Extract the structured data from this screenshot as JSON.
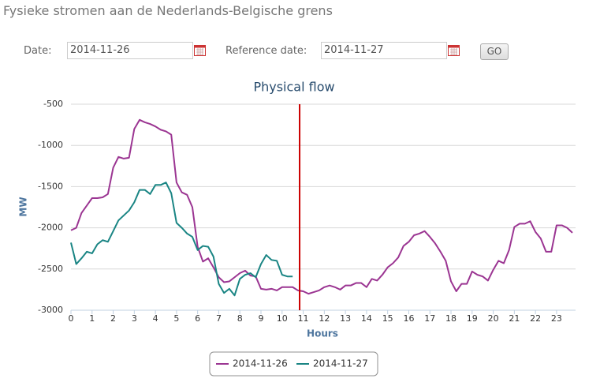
{
  "header": {
    "title": "Fysieke stromen aan de Nederlands-Belgische grens"
  },
  "form": {
    "date_label": "Date:",
    "date_value": "2014-11-26",
    "reference_label": "Reference date:",
    "reference_value": "2014-11-27",
    "button": "GO"
  },
  "chart_data": {
    "type": "line",
    "title": "Physical flow",
    "x_label": "Hours",
    "y_label": "MW",
    "x": [
      0,
      0.25,
      0.5,
      0.75,
      1,
      1.25,
      1.5,
      1.75,
      2,
      2.25,
      2.5,
      2.75,
      3,
      3.25,
      3.5,
      3.75,
      4,
      4.25,
      4.5,
      4.75,
      5,
      5.25,
      5.5,
      5.75,
      6,
      6.25,
      6.5,
      6.75,
      7,
      7.25,
      7.5,
      7.75,
      8,
      8.25,
      8.5,
      8.75,
      9,
      9.25,
      9.5,
      9.75,
      10,
      10.25,
      10.5,
      10.75,
      11,
      11.25,
      11.5,
      11.75,
      12,
      12.25,
      12.5,
      12.75,
      13,
      13.25,
      13.5,
      13.75,
      14,
      14.25,
      14.5,
      14.75,
      15,
      15.25,
      15.5,
      15.75,
      16,
      16.25,
      16.5,
      16.75,
      17,
      17.25,
      17.5,
      17.75,
      18,
      18.25,
      18.5,
      18.75,
      19,
      19.25,
      19.5,
      19.75,
      20,
      20.25,
      20.5,
      20.75,
      21,
      21.25,
      21.5,
      21.75,
      22,
      22.25,
      22.5,
      22.75,
      23,
      23.25,
      23.5,
      23.75
    ],
    "series": [
      {
        "name": "2014-11-26",
        "color": "#9b3592",
        "values": [
          -2030,
          -2000,
          -1820,
          -1730,
          -1640,
          -1640,
          -1630,
          -1590,
          -1270,
          -1140,
          -1160,
          -1150,
          -800,
          -690,
          -720,
          -740,
          -770,
          -810,
          -830,
          -870,
          -1450,
          -1570,
          -1600,
          -1750,
          -2230,
          -2410,
          -2370,
          -2480,
          -2600,
          -2660,
          -2650,
          -2600,
          -2550,
          -2520,
          -2580,
          -2590,
          -2740,
          -2750,
          -2740,
          -2760,
          -2720,
          -2720,
          -2720,
          -2760,
          -2770,
          -2800,
          -2780,
          -2760,
          -2720,
          -2700,
          -2720,
          -2750,
          -2700,
          -2700,
          -2670,
          -2670,
          -2720,
          -2620,
          -2640,
          -2570,
          -2480,
          -2430,
          -2360,
          -2220,
          -2170,
          -2090,
          -2070,
          -2040,
          -2110,
          -2190,
          -2290,
          -2400,
          -2650,
          -2770,
          -2680,
          -2680,
          -2530,
          -2570,
          -2590,
          -2640,
          -2510,
          -2400,
          -2430,
          -2270,
          -1990,
          -1950,
          -1950,
          -1920,
          -2050,
          -2130,
          -2290,
          -2290,
          -1970,
          -1970,
          -2000,
          -2060
        ]
      },
      {
        "name": "2014-11-27",
        "color": "#1a8584",
        "values": [
          -2180,
          -2440,
          -2370,
          -2290,
          -2310,
          -2200,
          -2150,
          -2170,
          -2040,
          -1910,
          -1850,
          -1790,
          -1690,
          -1540,
          -1540,
          -1590,
          -1480,
          -1480,
          -1450,
          -1580,
          -1940,
          -2000,
          -2070,
          -2110,
          -2270,
          -2220,
          -2230,
          -2350,
          -2680,
          -2790,
          -2740,
          -2820,
          -2620,
          -2570,
          -2550,
          -2600,
          -2440,
          -2330,
          -2390,
          -2400,
          -2570,
          -2590,
          -2590,
          null,
          null,
          null,
          null,
          null,
          null,
          null,
          null,
          null,
          null,
          null,
          null,
          null,
          null,
          null,
          null,
          null,
          null,
          null,
          null,
          null,
          null,
          null,
          null,
          null,
          null,
          null,
          null,
          null,
          null,
          null,
          null,
          null,
          null,
          null,
          null,
          null,
          null,
          null,
          null,
          null,
          null,
          null,
          null,
          null,
          null,
          null,
          null,
          null,
          null,
          null,
          null,
          null
        ]
      }
    ],
    "now_marker": {
      "x": 10.83,
      "color": "#cc0000"
    },
    "xlim": [
      0,
      24
    ],
    "xticks": [
      0,
      1,
      2,
      3,
      4,
      5,
      6,
      7,
      8,
      9,
      10,
      11,
      12,
      13,
      14,
      15,
      16,
      17,
      18,
      19,
      20,
      21,
      22,
      23
    ],
    "ylim": [
      -3000,
      -500
    ],
    "yticks": [
      -500,
      -1000,
      -1500,
      -2000,
      -2500,
      -3000
    ],
    "grid": true
  }
}
